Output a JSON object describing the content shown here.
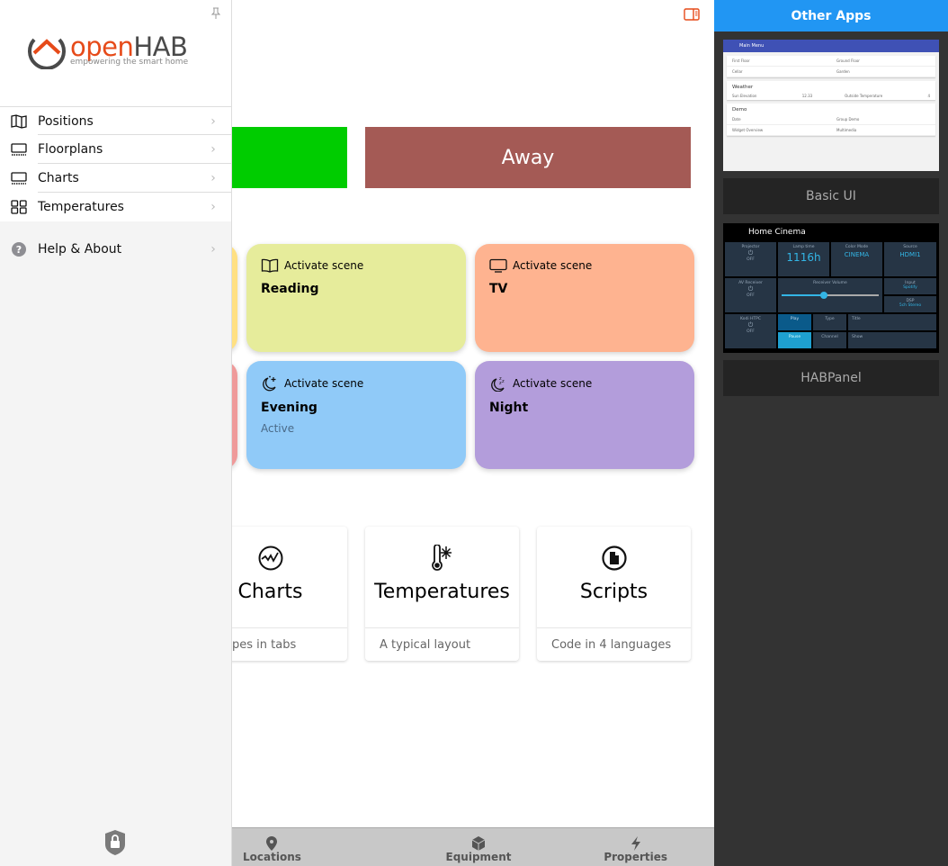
{
  "header": {
    "sidebar_toggle_icon": "sidebar-panel-icon"
  },
  "modes": {
    "home_label": "",
    "away_label": "Away",
    "home_color": "#00cc00",
    "away_color": "#a45a55"
  },
  "scenes": [
    {
      "label": "Activate scene",
      "name": "Reading",
      "state": "",
      "icon": "book-icon",
      "color": "#e6ec9b"
    },
    {
      "label": "Activate scene",
      "name": "TV",
      "state": "",
      "icon": "tv-icon",
      "color": "#feb390"
    },
    {
      "label": "Activate scene",
      "name": "Evening",
      "state": "Active",
      "icon": "moon-stars-icon",
      "color": "#90caf8"
    },
    {
      "label": "Activate scene",
      "name": "Night",
      "state": "",
      "icon": "moon-zzz-icon",
      "color": "#b39ddb"
    }
  ],
  "demo_cards": [
    {
      "title": "Charts",
      "subtitle": "pes in tabs",
      "icon": "chart-circle-icon"
    },
    {
      "title": "Temperatures",
      "subtitle": "A typical layout",
      "icon": "thermometer-snowflake-icon"
    },
    {
      "title": "Scripts",
      "subtitle": "Code in 4 languages",
      "icon": "document-circle-icon"
    }
  ],
  "toolbar": {
    "tabs": [
      {
        "label": "Locations",
        "icon": "map-pin-icon"
      },
      {
        "label": "Equipment",
        "icon": "cube-icon"
      },
      {
        "label": "Properties",
        "icon": "bolt-icon"
      }
    ]
  },
  "sidebar": {
    "logo_text": "openHAB",
    "logo_tagline": "empowering the smart home",
    "items": [
      {
        "label": "Positions",
        "icon": "map-icon"
      },
      {
        "label": "Floorplans",
        "icon": "floorplan-icon"
      },
      {
        "label": "Charts",
        "icon": "floorplan-icon"
      },
      {
        "label": "Temperatures",
        "icon": "grid-icon"
      }
    ],
    "help": {
      "label": "Help & About",
      "icon": "question-icon"
    }
  },
  "other_apps": {
    "title": "Other Apps",
    "apps": [
      {
        "label": "Basic UI",
        "preview": {
          "header": "Main Menu",
          "rows": [
            "First Floor",
            "Ground Floor",
            "Cellar",
            "Garden"
          ],
          "section1": "Weather",
          "weather": [
            "Sun Elevation",
            "12.33",
            "Outside Temperature",
            "4"
          ],
          "section2": "Demo",
          "demo": [
            "Date",
            "Group Demo",
            "Widget Overview",
            "Multimedia"
          ]
        }
      },
      {
        "label": "HABPanel",
        "preview": {
          "title": "Home Cinema",
          "projector": "Projector",
          "off": "OFF",
          "lamp": "Lamp time",
          "lamp_val": "1116h",
          "color_mode": "Color Mode",
          "color_val": "CINEMA",
          "source": "Source",
          "source_val": "HDMI1",
          "av": "AV Receiver",
          "volume": "Receiver Volume",
          "input": "Input",
          "input_val": "Spotify",
          "dsp": "DSP",
          "dsp_val": "5ch Stereo",
          "kodi": "Kodi HTPC",
          "play": "Play",
          "pause": "Pause",
          "type": "Type",
          "channel": "Channel",
          "title_l": "Title",
          "show": "Show"
        }
      }
    ]
  },
  "colors": {
    "accent": "#e64a19",
    "other_apps_header": "#2196f3"
  }
}
